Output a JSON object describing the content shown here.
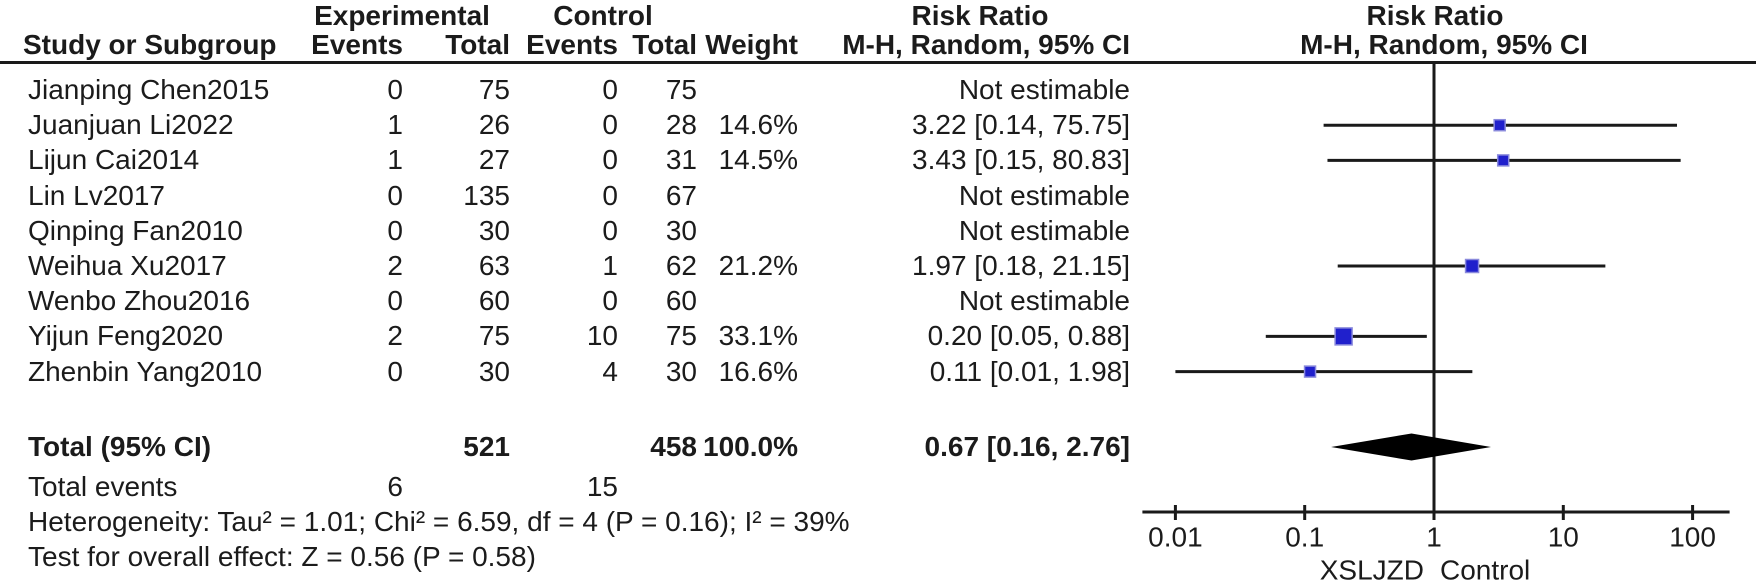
{
  "header": {
    "group_experimental": "Experimental",
    "group_control": "Control",
    "risk_ratio_text_col": "Risk Ratio",
    "risk_ratio_plot_col": "Risk Ratio",
    "study_col": "Study or Subgroup",
    "exp_events_col": "Events",
    "exp_total_col": "Total",
    "ctrl_events_col": "Events",
    "ctrl_total_col": "Total",
    "weight_col": "Weight",
    "mh_text_col": "M-H, Random, 95% CI",
    "mh_plot_col": "M-H, Random, 95% CI"
  },
  "rows": [
    {
      "study": "Jianping Chen2015",
      "exp_events": "0",
      "exp_total": "75",
      "ctrl_events": "0",
      "ctrl_total": "75",
      "weight": "",
      "rr": "Not estimable"
    },
    {
      "study": "Juanjuan Li2022",
      "exp_events": "1",
      "exp_total": "26",
      "ctrl_events": "0",
      "ctrl_total": "28",
      "weight": "14.6%",
      "rr": "3.22 [0.14, 75.75]"
    },
    {
      "study": "Lijun Cai2014",
      "exp_events": "1",
      "exp_total": "27",
      "ctrl_events": "0",
      "ctrl_total": "31",
      "weight": "14.5%",
      "rr": "3.43 [0.15, 80.83]"
    },
    {
      "study": "Lin Lv2017",
      "exp_events": "0",
      "exp_total": "135",
      "ctrl_events": "0",
      "ctrl_total": "67",
      "weight": "",
      "rr": "Not estimable"
    },
    {
      "study": "Qinping Fan2010",
      "exp_events": "0",
      "exp_total": "30",
      "ctrl_events": "0",
      "ctrl_total": "30",
      "weight": "",
      "rr": "Not estimable"
    },
    {
      "study": "Weihua Xu2017",
      "exp_events": "2",
      "exp_total": "63",
      "ctrl_events": "1",
      "ctrl_total": "62",
      "weight": "21.2%",
      "rr": "1.97 [0.18, 21.15]"
    },
    {
      "study": "Wenbo Zhou2016",
      "exp_events": "0",
      "exp_total": "60",
      "ctrl_events": "0",
      "ctrl_total": "60",
      "weight": "",
      "rr": "Not estimable"
    },
    {
      "study": "Yijun Feng2020",
      "exp_events": "2",
      "exp_total": "75",
      "ctrl_events": "10",
      "ctrl_total": "75",
      "weight": "33.1%",
      "rr": "0.20 [0.05, 0.88]"
    },
    {
      "study": "Zhenbin Yang2010",
      "exp_events": "0",
      "exp_total": "30",
      "ctrl_events": "4",
      "ctrl_total": "30",
      "weight": "16.6%",
      "rr": "0.11 [0.01, 1.98]"
    }
  ],
  "totals": {
    "label": "Total (95% CI)",
    "exp_total": "521",
    "ctrl_total": "458",
    "weight": "100.0%",
    "rr": "0.67 [0.16, 2.76]",
    "events_label": "Total events",
    "exp_events": "6",
    "ctrl_events": "15"
  },
  "footer": {
    "heterogeneity": "Heterogeneity: Tau² = 1.01; Chi² = 6.59, df = 4 (P = 0.16); I² = 39%",
    "overall_effect": "Test for overall effect: Z = 0.56 (P = 0.58)"
  },
  "chart_data": {
    "type": "scatter",
    "subtype": "forest-plot",
    "x_scale": "log",
    "xlim": [
      0.01,
      100
    ],
    "x_ticks": [
      "0.01",
      "0.1",
      "1",
      "10",
      "100"
    ],
    "ref_line": 1,
    "axis_label_left": "XSLJZD",
    "axis_label_right": "Control",
    "points": [
      {
        "study": "Juanjuan Li2022",
        "row_index": 1,
        "rr": 3.22,
        "ci": [
          0.14,
          75.75
        ],
        "weight_pct": 14.6
      },
      {
        "study": "Lijun Cai2014",
        "row_index": 2,
        "rr": 3.43,
        "ci": [
          0.15,
          80.83
        ],
        "weight_pct": 14.5
      },
      {
        "study": "Weihua Xu2017",
        "row_index": 5,
        "rr": 1.97,
        "ci": [
          0.18,
          21.15
        ],
        "weight_pct": 21.2
      },
      {
        "study": "Yijun Feng2020",
        "row_index": 7,
        "rr": 0.2,
        "ci": [
          0.05,
          0.88
        ],
        "weight_pct": 33.1
      },
      {
        "study": "Zhenbin Yang2010",
        "row_index": 8,
        "rr": 0.11,
        "ci": [
          0.01,
          1.98
        ],
        "weight_pct": 16.6
      }
    ],
    "total_diamond": {
      "rr": 0.67,
      "ci": [
        0.16,
        2.76
      ]
    },
    "colors": {
      "marker": "#2020cc",
      "marker_edge": "#8a8adc",
      "ci_line": "#1a1a1a",
      "diamond": "#000000",
      "axis": "#1a1a1a",
      "text": "#1b1b1b"
    }
  }
}
